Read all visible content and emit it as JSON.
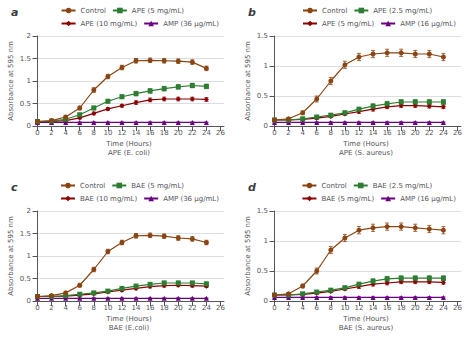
{
  "chart_data": [
    {
      "type": "line",
      "title": "a",
      "xlabel": "Time (Hours)\nAPE (E. coli)",
      "ylabel": "Absorbance at 595 nm",
      "x": [
        0,
        2,
        4,
        6,
        8,
        10,
        12,
        14,
        16,
        18,
        20,
        22,
        24
      ],
      "xlim": [
        -0.5,
        26.5
      ],
      "xticks": [
        0,
        2,
        4,
        6,
        8,
        10,
        12,
        14,
        16,
        18,
        20,
        22,
        24,
        26
      ],
      "ylim": [
        0.0,
        2.0
      ],
      "yticks": [
        0.0,
        0.5,
        1.0,
        1.5,
        2.0
      ],
      "grid": true,
      "legend": "upper right",
      "series": [
        {
          "name": "Control",
          "color": "#8B4513",
          "marker": "circle",
          "values": [
            0.1,
            0.12,
            0.2,
            0.4,
            0.8,
            1.1,
            1.3,
            1.45,
            1.46,
            1.45,
            1.44,
            1.42,
            1.28
          ],
          "errors": [
            0.02,
            0.02,
            0.03,
            0.04,
            0.05,
            0.05,
            0.05,
            0.05,
            0.05,
            0.05,
            0.05,
            0.05,
            0.05
          ]
        },
        {
          "name": "APE (5 mg/mL)",
          "color": "#2E7D32",
          "marker": "square",
          "values": [
            0.1,
            0.11,
            0.15,
            0.25,
            0.4,
            0.55,
            0.65,
            0.72,
            0.78,
            0.83,
            0.87,
            0.9,
            0.88
          ],
          "errors": [
            0.02,
            0.02,
            0.02,
            0.03,
            0.04,
            0.04,
            0.04,
            0.05,
            0.05,
            0.05,
            0.05,
            0.05,
            0.05
          ]
        },
        {
          "name": "APE (10 mg/mL)",
          "color": "#8B0000",
          "marker": "diamond",
          "values": [
            0.1,
            0.1,
            0.12,
            0.18,
            0.28,
            0.38,
            0.45,
            0.52,
            0.58,
            0.6,
            0.6,
            0.6,
            0.59
          ],
          "errors": [
            0.01,
            0.01,
            0.02,
            0.02,
            0.03,
            0.03,
            0.03,
            0.04,
            0.04,
            0.04,
            0.04,
            0.04,
            0.04
          ]
        },
        {
          "name": "AMP (36 μg/mL)",
          "color": "#6A0080",
          "marker": "triangle",
          "values": [
            0.08,
            0.08,
            0.08,
            0.08,
            0.08,
            0.08,
            0.08,
            0.08,
            0.08,
            0.08,
            0.08,
            0.08,
            0.08
          ],
          "errors": [
            0.01,
            0.01,
            0.01,
            0.01,
            0.01,
            0.01,
            0.01,
            0.01,
            0.01,
            0.01,
            0.01,
            0.01,
            0.01
          ]
        }
      ]
    },
    {
      "type": "line",
      "title": "b",
      "xlabel": "Time (Hours)\nAPE (S. aureus)",
      "ylabel": "Absorbance at 595 nm",
      "x": [
        0,
        2,
        4,
        6,
        8,
        10,
        12,
        14,
        16,
        18,
        20,
        22,
        24
      ],
      "xlim": [
        -0.5,
        26.5
      ],
      "xticks": [
        0,
        2,
        4,
        6,
        8,
        10,
        12,
        14,
        16,
        18,
        20,
        22,
        24,
        26
      ],
      "ylim": [
        0.0,
        1.5
      ],
      "yticks": [
        0.0,
        0.5,
        1.0,
        1.5
      ],
      "grid": true,
      "legend": "upper right",
      "series": [
        {
          "name": "Control",
          "color": "#8B4513",
          "marker": "circle",
          "values": [
            0.1,
            0.12,
            0.22,
            0.45,
            0.75,
            1.02,
            1.15,
            1.2,
            1.22,
            1.22,
            1.2,
            1.2,
            1.15
          ],
          "errors": [
            0.02,
            0.02,
            0.03,
            0.05,
            0.06,
            0.06,
            0.06,
            0.06,
            0.06,
            0.06,
            0.06,
            0.06,
            0.06
          ]
        },
        {
          "name": "APE (2.5 mg/mL)",
          "color": "#2E7D32",
          "marker": "square",
          "values": [
            0.1,
            0.1,
            0.12,
            0.15,
            0.18,
            0.22,
            0.28,
            0.33,
            0.37,
            0.4,
            0.4,
            0.4,
            0.4
          ],
          "errors": [
            0.01,
            0.01,
            0.02,
            0.02,
            0.03,
            0.03,
            0.03,
            0.04,
            0.04,
            0.04,
            0.04,
            0.04,
            0.04
          ]
        },
        {
          "name": "APE (5 mg/mL)",
          "color": "#8B0000",
          "marker": "diamond",
          "values": [
            0.1,
            0.1,
            0.11,
            0.13,
            0.16,
            0.2,
            0.24,
            0.28,
            0.32,
            0.34,
            0.34,
            0.33,
            0.32
          ],
          "errors": [
            0.01,
            0.01,
            0.01,
            0.02,
            0.02,
            0.02,
            0.03,
            0.03,
            0.03,
            0.03,
            0.03,
            0.03,
            0.03
          ]
        },
        {
          "name": "AMP (16 μg/mL)",
          "color": "#6A0080",
          "marker": "triangle",
          "values": [
            0.06,
            0.06,
            0.06,
            0.06,
            0.06,
            0.06,
            0.06,
            0.06,
            0.06,
            0.06,
            0.06,
            0.06,
            0.06
          ],
          "errors": [
            0.01,
            0.01,
            0.01,
            0.01,
            0.01,
            0.01,
            0.01,
            0.01,
            0.01,
            0.01,
            0.01,
            0.01,
            0.01
          ]
        }
      ]
    },
    {
      "type": "line",
      "title": "c",
      "xlabel": "Time (Hours)\nBAE (E.coli)",
      "ylabel": "Absorbance at 595 nm",
      "x": [
        0,
        2,
        4,
        6,
        8,
        10,
        12,
        14,
        16,
        18,
        20,
        22,
        24
      ],
      "xlim": [
        -0.5,
        26.5
      ],
      "xticks": [
        0,
        2,
        4,
        6,
        8,
        10,
        12,
        14,
        16,
        18,
        20,
        22,
        24,
        26
      ],
      "ylim": [
        0.0,
        2.0
      ],
      "yticks": [
        0.0,
        0.5,
        1.0,
        1.5,
        2.0
      ],
      "grid": true,
      "legend": "upper right",
      "series": [
        {
          "name": "Control",
          "color": "#8B4513",
          "marker": "circle",
          "values": [
            0.1,
            0.12,
            0.18,
            0.35,
            0.7,
            1.1,
            1.3,
            1.45,
            1.46,
            1.44,
            1.4,
            1.38,
            1.3
          ],
          "errors": [
            0.02,
            0.02,
            0.03,
            0.04,
            0.05,
            0.05,
            0.05,
            0.05,
            0.05,
            0.05,
            0.05,
            0.05,
            0.05
          ]
        },
        {
          "name": "BAE (5 mg/mL)",
          "color": "#2E7D32",
          "marker": "square",
          "values": [
            0.1,
            0.1,
            0.12,
            0.15,
            0.18,
            0.22,
            0.28,
            0.33,
            0.37,
            0.4,
            0.4,
            0.4,
            0.38
          ],
          "errors": [
            0.01,
            0.01,
            0.02,
            0.02,
            0.03,
            0.03,
            0.03,
            0.04,
            0.04,
            0.04,
            0.04,
            0.04,
            0.04
          ]
        },
        {
          "name": "BAE (10 mg/mL)",
          "color": "#8B0000",
          "marker": "diamond",
          "values": [
            0.1,
            0.1,
            0.11,
            0.13,
            0.16,
            0.2,
            0.24,
            0.28,
            0.32,
            0.34,
            0.35,
            0.34,
            0.33
          ],
          "errors": [
            0.01,
            0.01,
            0.01,
            0.02,
            0.02,
            0.02,
            0.03,
            0.03,
            0.03,
            0.03,
            0.03,
            0.03,
            0.03
          ]
        },
        {
          "name": "AMP (36 μg/mL)",
          "color": "#6A0080",
          "marker": "triangle",
          "values": [
            0.06,
            0.06,
            0.06,
            0.06,
            0.06,
            0.06,
            0.06,
            0.06,
            0.06,
            0.06,
            0.06,
            0.06,
            0.06
          ],
          "errors": [
            0.01,
            0.01,
            0.01,
            0.01,
            0.01,
            0.01,
            0.01,
            0.01,
            0.01,
            0.01,
            0.01,
            0.01,
            0.01
          ]
        }
      ]
    },
    {
      "type": "line",
      "title": "d",
      "xlabel": "Time (Hours)\nBAE (S. aureus)",
      "ylabel": "Absorbance at 595 nm",
      "x": [
        0,
        2,
        4,
        6,
        8,
        10,
        12,
        14,
        16,
        18,
        20,
        22,
        24
      ],
      "xlim": [
        -0.5,
        26.5
      ],
      "xticks": [
        0,
        2,
        4,
        6,
        8,
        10,
        12,
        14,
        16,
        18,
        20,
        22,
        24,
        26
      ],
      "ylim": [
        0.0,
        1.5
      ],
      "yticks": [
        0.0,
        0.5,
        1.0,
        1.5
      ],
      "grid": true,
      "legend": "upper right",
      "series": [
        {
          "name": "Control",
          "color": "#8B4513",
          "marker": "circle",
          "values": [
            0.1,
            0.12,
            0.25,
            0.5,
            0.85,
            1.05,
            1.18,
            1.22,
            1.24,
            1.24,
            1.22,
            1.2,
            1.18
          ],
          "errors": [
            0.02,
            0.02,
            0.03,
            0.05,
            0.06,
            0.06,
            0.06,
            0.06,
            0.06,
            0.06,
            0.06,
            0.06,
            0.06
          ]
        },
        {
          "name": "BAE (2.5 mg/mL)",
          "color": "#2E7D32",
          "marker": "square",
          "values": [
            0.1,
            0.1,
            0.12,
            0.15,
            0.18,
            0.22,
            0.28,
            0.33,
            0.37,
            0.38,
            0.38,
            0.38,
            0.38
          ],
          "errors": [
            0.01,
            0.01,
            0.02,
            0.02,
            0.03,
            0.03,
            0.03,
            0.04,
            0.04,
            0.04,
            0.04,
            0.04,
            0.04
          ]
        },
        {
          "name": "BAE (5 mg/mL)",
          "color": "#8B0000",
          "marker": "diamond",
          "values": [
            0.1,
            0.1,
            0.11,
            0.13,
            0.16,
            0.2,
            0.24,
            0.28,
            0.3,
            0.32,
            0.32,
            0.32,
            0.31
          ],
          "errors": [
            0.01,
            0.01,
            0.01,
            0.02,
            0.02,
            0.02,
            0.03,
            0.03,
            0.03,
            0.03,
            0.03,
            0.03,
            0.03
          ]
        },
        {
          "name": "AMP (16 μg/mL)",
          "color": "#6A0080",
          "marker": "triangle",
          "values": [
            0.06,
            0.06,
            0.06,
            0.06,
            0.06,
            0.06,
            0.06,
            0.06,
            0.06,
            0.06,
            0.06,
            0.06,
            0.06
          ],
          "errors": [
            0.01,
            0.01,
            0.01,
            0.01,
            0.01,
            0.01,
            0.01,
            0.01,
            0.01,
            0.01,
            0.01,
            0.01,
            0.01
          ]
        }
      ]
    }
  ]
}
